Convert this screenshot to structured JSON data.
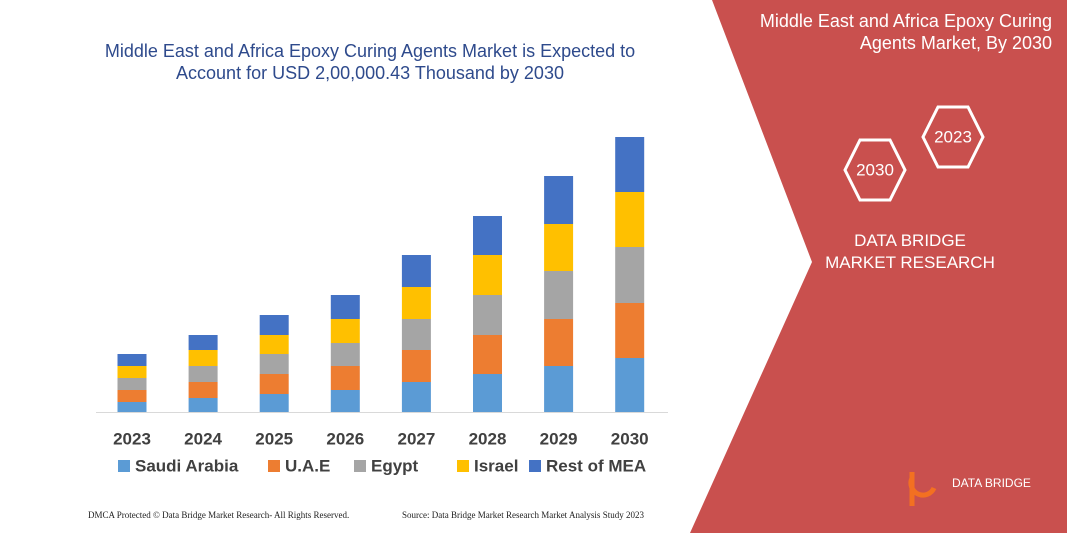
{
  "chart_data": {
    "type": "stacked_bar",
    "title": "Middle East and Africa Epoxy Curing Agents Market is Expected to Account for USD 2,00,000.43 Thousand by 2030",
    "categories": [
      "2023",
      "2024",
      "2025",
      "2026",
      "2027",
      "2028",
      "2029",
      "2030"
    ],
    "series": [
      {
        "name": "Saudi Arabia",
        "color": "#5b9bd5",
        "values": [
          10,
          14,
          18,
          22,
          30,
          38,
          46,
          54
        ]
      },
      {
        "name": "U.A.E",
        "color": "#ed7d31",
        "values": [
          12,
          16,
          20,
          24,
          32,
          39,
          47,
          55
        ]
      },
      {
        "name": "Egypt",
        "color": "#a5a5a5",
        "values": [
          12,
          16,
          20,
          23,
          31,
          40,
          48,
          56
        ]
      },
      {
        "name": "Israel",
        "color": "#ffc000",
        "values": [
          12,
          16,
          19,
          24,
          32,
          40,
          47,
          55
        ]
      },
      {
        "name": "Rest of MEA",
        "color": "#4472c4",
        "values": [
          12,
          15,
          20,
          24,
          32,
          39,
          48,
          55
        ]
      }
    ]
  },
  "side_panel": {
    "title": "Middle East and Africa Epoxy Curing Agents Market, By 2030",
    "hexagons": [
      "2023",
      "2030"
    ],
    "brand": "DATA BRIDGE MARKET RESEARCH",
    "logo": "DATA BRIDGE"
  },
  "footer": {
    "left": "DMCA Protected © Data Bridge Market Research- All Rights Reserved.",
    "right": "Source: Data Bridge Market Research Market Analysis Study 2023"
  }
}
